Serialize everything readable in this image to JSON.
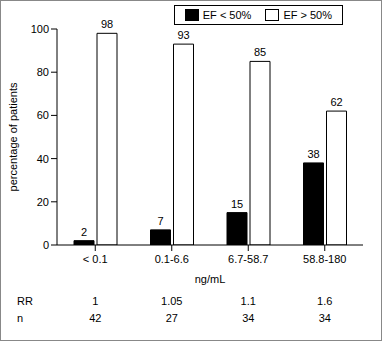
{
  "chart_data": {
    "type": "bar",
    "categories": [
      "< 0.1",
      "0.1-6.6",
      "6.7-58.7",
      "58.8-180"
    ],
    "series": [
      {
        "name": "EF < 50%",
        "color": "#000000",
        "values": [
          2,
          7,
          15,
          38
        ]
      },
      {
        "name": "EF > 50%",
        "color": "#ffffff",
        "values": [
          98,
          93,
          85,
          62
        ]
      }
    ],
    "x_label": "ng/mL",
    "y_label": "percentage of patients",
    "ylim": [
      0,
      100
    ],
    "yticks": [
      0,
      20,
      40,
      60,
      80,
      100
    ],
    "data_labels": true,
    "legend": "top",
    "grid": false,
    "table": [
      {
        "label": "RR",
        "values": [
          1,
          1.05,
          1.1,
          1.6
        ]
      },
      {
        "label": "n",
        "values": [
          42,
          27,
          34,
          34
        ]
      }
    ]
  }
}
